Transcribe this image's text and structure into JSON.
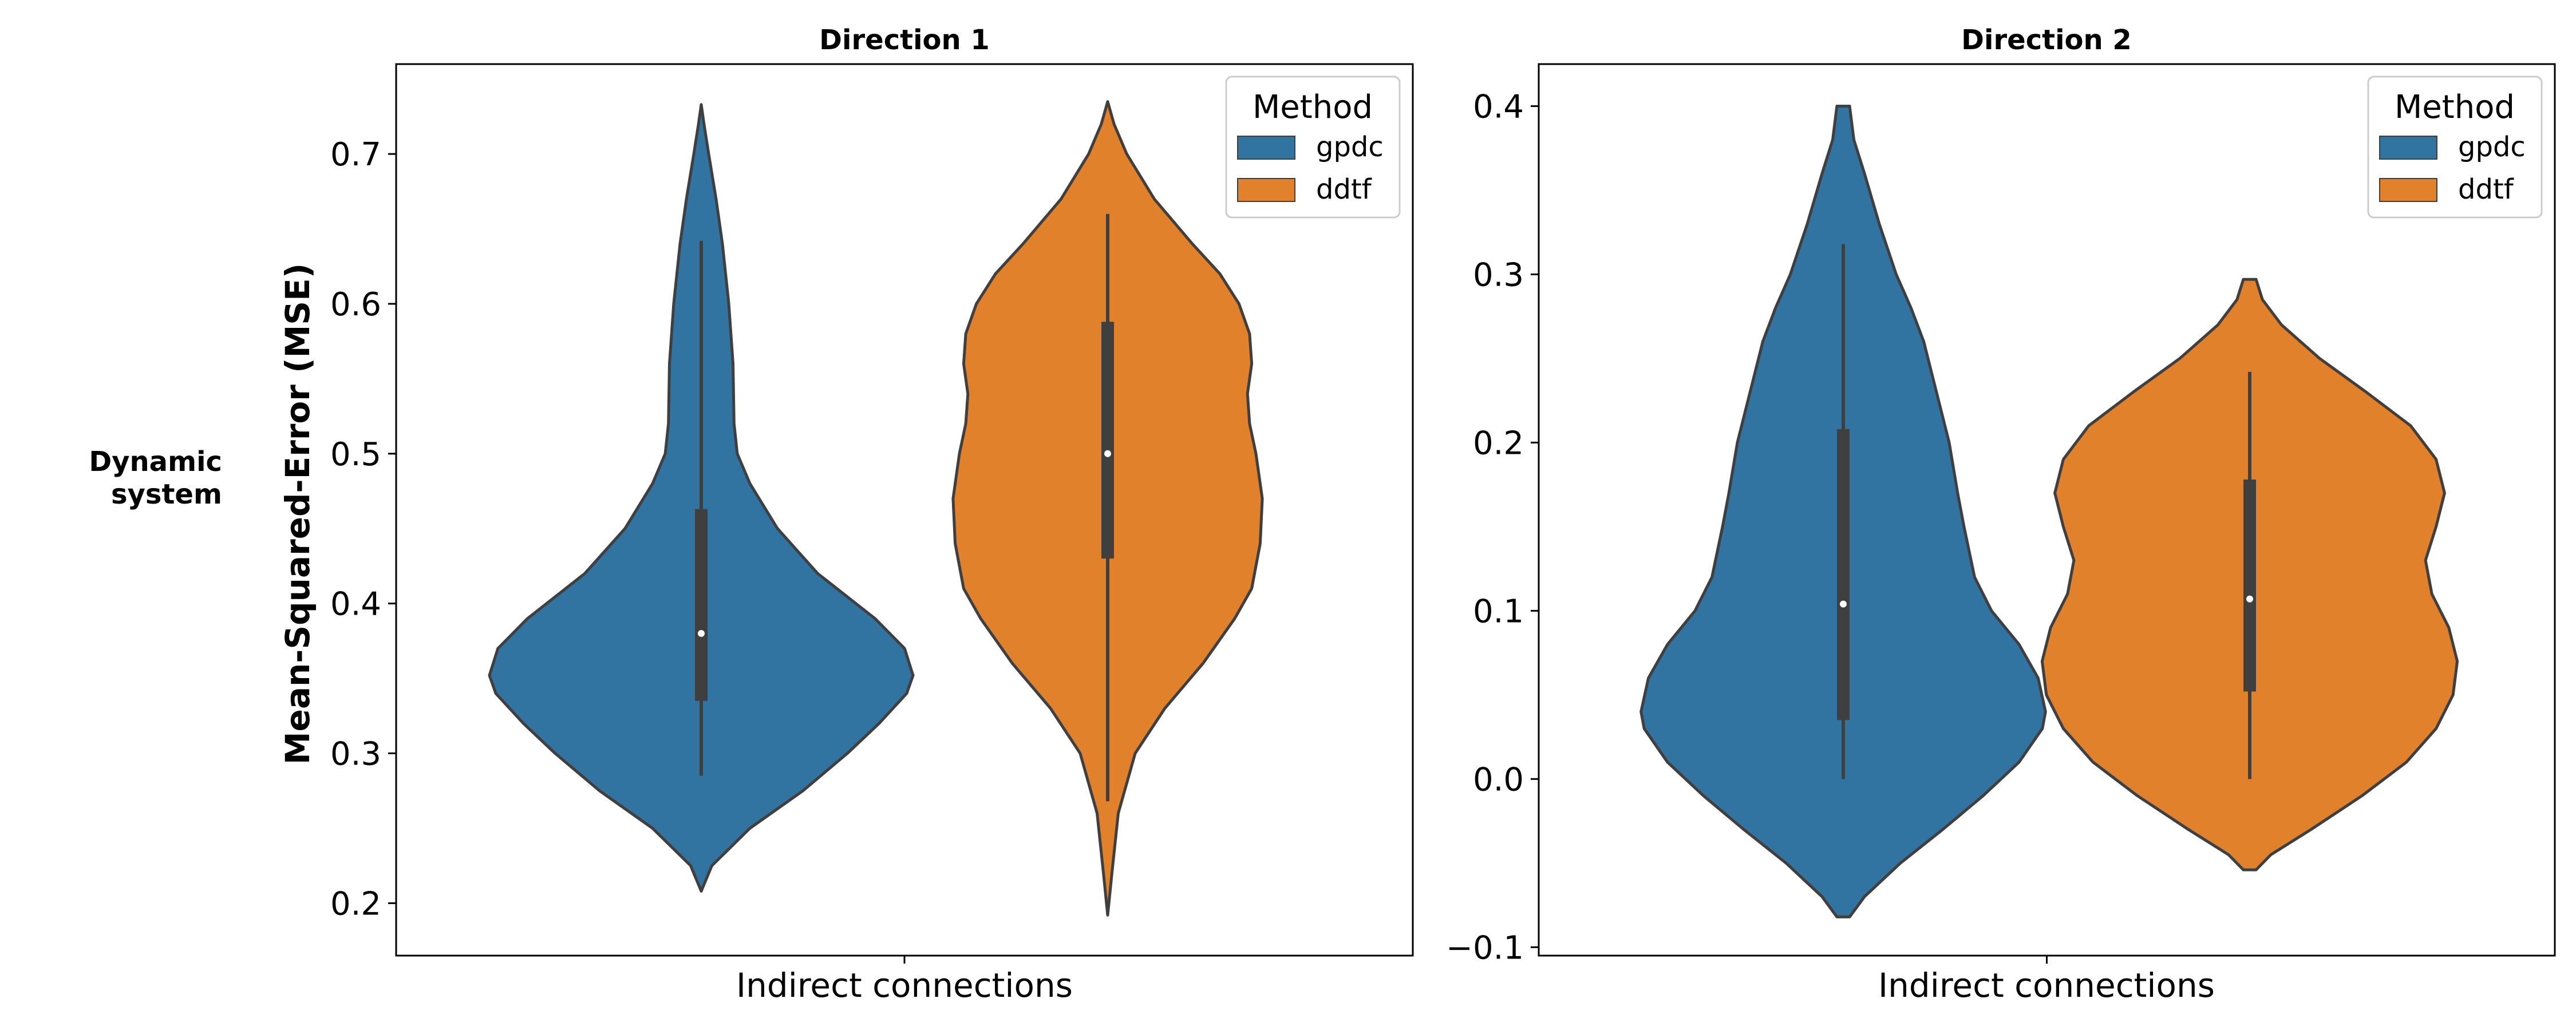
{
  "row_label": [
    "Dynamic",
    "system"
  ],
  "ylabel": "Mean-Squared-Error (MSE)",
  "colors": {
    "gpdc": "#3274a1",
    "ddtf": "#e1812c",
    "edge": "#3f3f3f",
    "box": "#3f3f3f",
    "median": "#ffffff"
  },
  "chart_data": [
    {
      "type": "violin",
      "title": "Direction 1",
      "category": "Indirect connections",
      "ylim": [
        0.165,
        0.76
      ],
      "yticks": [
        0.2,
        0.3,
        0.4,
        0.5,
        0.6,
        0.7
      ],
      "legend": {
        "title": "Method",
        "entries": [
          "gpdc",
          "ddtf"
        ],
        "placement": "upper right"
      },
      "series": [
        {
          "name": "gpdc",
          "whisker": [
            0.285,
            0.642
          ],
          "quartiles": [
            0.335,
            0.463
          ],
          "median": 0.38,
          "range": [
            0.208,
            0.733
          ],
          "density": [
            [
              0.208,
              0.0
            ],
            [
              0.225,
              0.05
            ],
            [
              0.25,
              0.23
            ],
            [
              0.275,
              0.48
            ],
            [
              0.3,
              0.69
            ],
            [
              0.32,
              0.84
            ],
            [
              0.34,
              0.97
            ],
            [
              0.352,
              1.0
            ],
            [
              0.37,
              0.96
            ],
            [
              0.39,
              0.82
            ],
            [
              0.42,
              0.55
            ],
            [
              0.45,
              0.36
            ],
            [
              0.48,
              0.23
            ],
            [
              0.5,
              0.17
            ],
            [
              0.52,
              0.155
            ],
            [
              0.56,
              0.15
            ],
            [
              0.6,
              0.13
            ],
            [
              0.64,
              0.1
            ],
            [
              0.67,
              0.07
            ],
            [
              0.7,
              0.035
            ],
            [
              0.72,
              0.013
            ],
            [
              0.733,
              0.0
            ]
          ]
        },
        {
          "name": "ddtf",
          "whisker": [
            0.268,
            0.66
          ],
          "quartiles": [
            0.43,
            0.588
          ],
          "median": 0.5,
          "range": [
            0.192,
            0.735
          ],
          "density": [
            [
              0.192,
              0.0
            ],
            [
              0.22,
              0.02
            ],
            [
              0.26,
              0.05
            ],
            [
              0.3,
              0.13
            ],
            [
              0.33,
              0.27
            ],
            [
              0.36,
              0.45
            ],
            [
              0.39,
              0.6
            ],
            [
              0.41,
              0.68
            ],
            [
              0.44,
              0.72
            ],
            [
              0.47,
              0.73
            ],
            [
              0.5,
              0.7
            ],
            [
              0.52,
              0.67
            ],
            [
              0.54,
              0.66
            ],
            [
              0.56,
              0.68
            ],
            [
              0.58,
              0.67
            ],
            [
              0.6,
              0.62
            ],
            [
              0.62,
              0.53
            ],
            [
              0.64,
              0.4
            ],
            [
              0.67,
              0.22
            ],
            [
              0.7,
              0.09
            ],
            [
              0.72,
              0.03
            ],
            [
              0.735,
              0.0
            ]
          ]
        }
      ]
    },
    {
      "type": "violin",
      "title": "Direction 2",
      "category": "Indirect connections",
      "ylim": [
        -0.105,
        0.425
      ],
      "yticks": [
        -0.1,
        0.0,
        0.1,
        0.2,
        0.3,
        0.4
      ],
      "legend": {
        "title": "Method",
        "entries": [
          "gpdc",
          "ddtf"
        ],
        "placement": "upper right"
      },
      "series": [
        {
          "name": "gpdc",
          "whisker": [
            0.0,
            0.318
          ],
          "quartiles": [
            0.035,
            0.208
          ],
          "median": 0.104,
          "range": [
            -0.082,
            0.4
          ],
          "density": [
            [
              -0.082,
              0.03
            ],
            [
              -0.07,
              0.1
            ],
            [
              -0.05,
              0.27
            ],
            [
              -0.03,
              0.47
            ],
            [
              -0.01,
              0.66
            ],
            [
              0.01,
              0.83
            ],
            [
              0.03,
              0.94
            ],
            [
              0.04,
              0.955
            ],
            [
              0.06,
              0.92
            ],
            [
              0.08,
              0.83
            ],
            [
              0.1,
              0.7
            ],
            [
              0.12,
              0.62
            ],
            [
              0.15,
              0.57
            ],
            [
              0.17,
              0.54
            ],
            [
              0.2,
              0.5
            ],
            [
              0.23,
              0.44
            ],
            [
              0.26,
              0.38
            ],
            [
              0.28,
              0.32
            ],
            [
              0.3,
              0.25
            ],
            [
              0.33,
              0.17
            ],
            [
              0.36,
              0.1
            ],
            [
              0.38,
              0.05
            ],
            [
              0.4,
              0.03
            ]
          ]
        },
        {
          "name": "ddtf",
          "whisker": [
            0.0,
            0.242
          ],
          "quartiles": [
            0.052,
            0.178
          ],
          "median": 0.107,
          "range": [
            -0.054,
            0.297
          ],
          "density": [
            [
              -0.054,
              0.03
            ],
            [
              -0.045,
              0.1
            ],
            [
              -0.03,
              0.29
            ],
            [
              -0.01,
              0.53
            ],
            [
              0.01,
              0.74
            ],
            [
              0.03,
              0.88
            ],
            [
              0.05,
              0.96
            ],
            [
              0.07,
              0.98
            ],
            [
              0.09,
              0.94
            ],
            [
              0.11,
              0.86
            ],
            [
              0.13,
              0.83
            ],
            [
              0.15,
              0.88
            ],
            [
              0.17,
              0.92
            ],
            [
              0.19,
              0.88
            ],
            [
              0.21,
              0.76
            ],
            [
              0.23,
              0.55
            ],
            [
              0.25,
              0.33
            ],
            [
              0.27,
              0.15
            ],
            [
              0.285,
              0.06
            ],
            [
              0.297,
              0.03
            ]
          ]
        }
      ]
    }
  ]
}
